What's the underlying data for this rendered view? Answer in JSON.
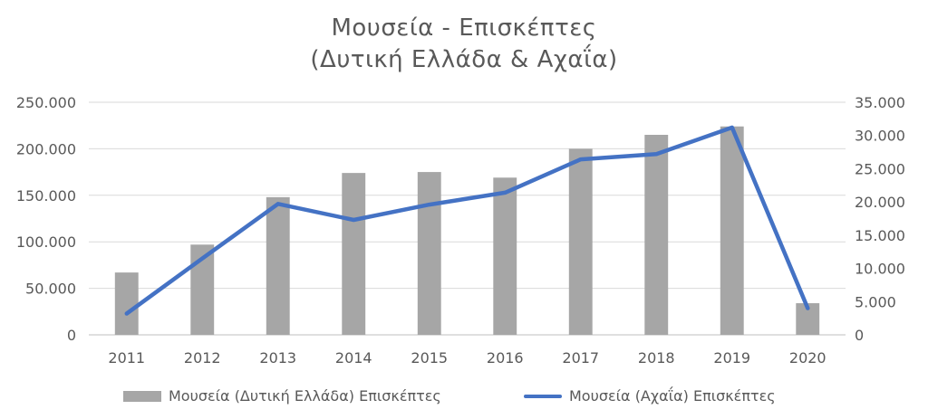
{
  "chart_data": {
    "type": "bar",
    "title": "Μουσεία - Επισκέπτες",
    "subtitle": "(Δυτική Ελλάδα & Αχαΐα)",
    "categories": [
      "2011",
      "2012",
      "2013",
      "2014",
      "2015",
      "2016",
      "2017",
      "2018",
      "2019",
      "2020"
    ],
    "series": [
      {
        "name": "Μουσεία (Δυτική Ελλάδα) Επισκέπτες",
        "type": "bar",
        "axis": "left",
        "color": "#a6a6a6",
        "values": [
          67000,
          97000,
          148000,
          174000,
          175000,
          169000,
          200000,
          215000,
          224000,
          34000
        ]
      },
      {
        "name": "Μουσεία (Αχαΐα) Επισκέπτες",
        "type": "line",
        "axis": "right",
        "color": "#4472c4",
        "values": [
          3200,
          11500,
          19700,
          17300,
          19600,
          21400,
          26400,
          27200,
          31200,
          4000
        ]
      }
    ],
    "ylim": [
      0,
      250000
    ],
    "yticks": [
      "0",
      "50.000",
      "100.000",
      "150.000",
      "200.000",
      "250.000"
    ],
    "y2lim": [
      0,
      35000
    ],
    "y2ticks": [
      "0",
      "5.000",
      "10.000",
      "15.000",
      "20.000",
      "25.000",
      "30.000",
      "35.000"
    ],
    "grid": true,
    "legend_position": "bottom"
  }
}
